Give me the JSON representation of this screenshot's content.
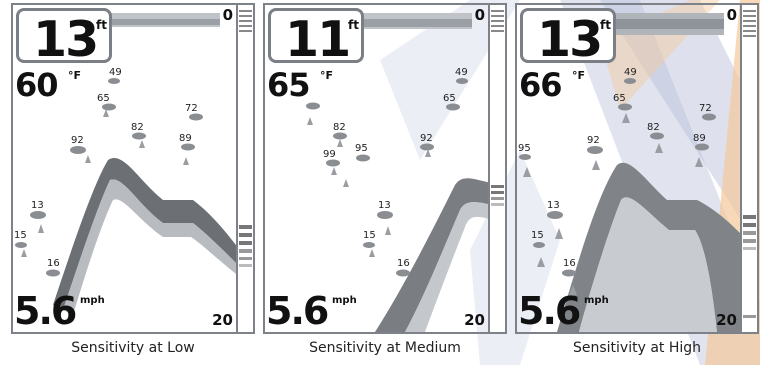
{
  "panels": [
    {
      "depth": "13",
      "depth_unit": "ft",
      "temperature": "60",
      "temperature_unit": "°F",
      "speed": "5.6",
      "speed_unit": "mph",
      "scale_top": "0",
      "scale_bottom": "20",
      "caption": "Sensitivity at Low",
      "fish_labels": [
        "49",
        "65",
        "72",
        "82",
        "89",
        "92",
        "13",
        "15",
        "16"
      ]
    },
    {
      "depth": "11",
      "depth_unit": "ft",
      "temperature": "65",
      "temperature_unit": "°F",
      "speed": "5.6",
      "speed_unit": "mph",
      "scale_top": "0",
      "scale_bottom": "20",
      "caption": "Sensitivity at Medium",
      "fish_labels": [
        "49",
        "65",
        "82",
        "92",
        "95",
        "99",
        "13",
        "15",
        "16"
      ]
    },
    {
      "depth": "13",
      "depth_unit": "ft",
      "temperature": "66",
      "temperature_unit": "°F",
      "speed": "5.6",
      "speed_unit": "mph",
      "scale_top": "0",
      "scale_bottom": "20",
      "caption": "Sensitivity at High",
      "fish_labels": [
        "49",
        "65",
        "72",
        "82",
        "89",
        "92",
        "95",
        "13",
        "15",
        "16"
      ]
    }
  ],
  "colors": {
    "screen_border": "#7d8288",
    "sonar": "#555555",
    "watermark_blue": "#b6bdd6",
    "watermark_orange": "#f3c99b"
  }
}
